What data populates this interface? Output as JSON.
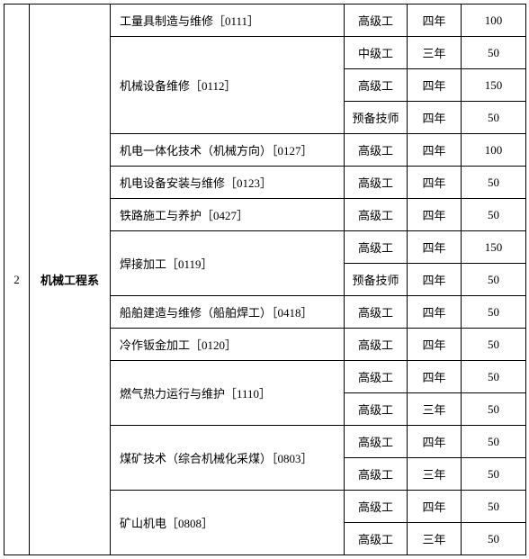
{
  "index": "2",
  "department": "机械工程系",
  "majors": [
    {
      "name": "工量具制造与维修［0111］",
      "rows": [
        {
          "level": "高级工",
          "duration": "四年",
          "count": "100"
        }
      ]
    },
    {
      "name": "机械设备维修［0112］",
      "rows": [
        {
          "level": "中级工",
          "duration": "三年",
          "count": "50"
        },
        {
          "level": "高级工",
          "duration": "四年",
          "count": "150"
        },
        {
          "level": "预备技师",
          "duration": "四年",
          "count": "50"
        }
      ]
    },
    {
      "name": "机电一体化技术（机械方向）［0127］",
      "rows": [
        {
          "level": "高级工",
          "duration": "四年",
          "count": "100"
        }
      ]
    },
    {
      "name": "机电设备安装与维修［0123］",
      "rows": [
        {
          "level": "高级工",
          "duration": "四年",
          "count": "50"
        }
      ]
    },
    {
      "name": "铁路施工与养护［0427］",
      "rows": [
        {
          "level": "高级工",
          "duration": "四年",
          "count": "50"
        }
      ]
    },
    {
      "name": "焊接加工［0119］",
      "rows": [
        {
          "level": "高级工",
          "duration": "四年",
          "count": "150"
        },
        {
          "level": "预备技师",
          "duration": "四年",
          "count": "50"
        }
      ]
    },
    {
      "name": "船舶建造与维修（船舶焊工）［0418］",
      "rows": [
        {
          "level": "高级工",
          "duration": "四年",
          "count": "50"
        }
      ]
    },
    {
      "name": "冷作钣金加工［0120］",
      "rows": [
        {
          "level": "高级工",
          "duration": "四年",
          "count": "50"
        }
      ]
    },
    {
      "name": "燃气热力运行与维护［1110］",
      "rows": [
        {
          "level": "高级工",
          "duration": "四年",
          "count": "50"
        },
        {
          "level": "高级工",
          "duration": "三年",
          "count": "50"
        }
      ]
    },
    {
      "name": "煤矿技术（综合机械化采煤）［0803］",
      "rows": [
        {
          "level": "高级工",
          "duration": "四年",
          "count": "50"
        },
        {
          "level": "高级工",
          "duration": "三年",
          "count": "50"
        }
      ]
    },
    {
      "name": "矿山机电［0808］",
      "rows": [
        {
          "level": "高级工",
          "duration": "四年",
          "count": "50"
        },
        {
          "level": "高级工",
          "duration": "三年",
          "count": "50"
        }
      ]
    }
  ]
}
